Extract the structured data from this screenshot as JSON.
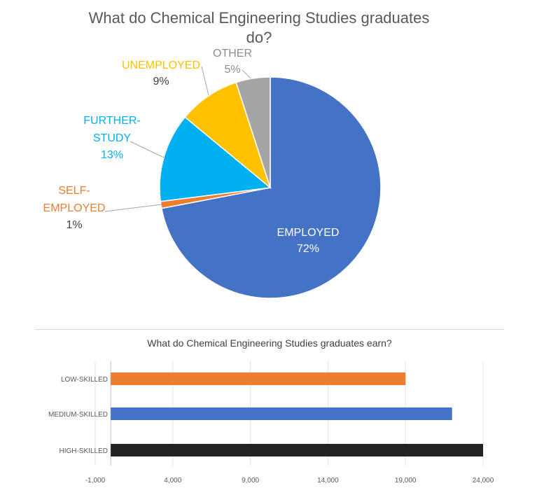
{
  "chart_data": [
    {
      "type": "pie",
      "title": "What do Chemical Engineering Studies graduates do?",
      "slices": [
        {
          "label": "EMPLOYED",
          "value": 72,
          "display": "72%",
          "color": "#4472C4"
        },
        {
          "label": "SELF-EMPLOYED",
          "value": 1,
          "display": "1%",
          "color": "#ED7D31"
        },
        {
          "label": "FURTHER-STUDY",
          "value": 13,
          "display": "13%",
          "color": "#00B0F0"
        },
        {
          "label": "UNEMPLOYED",
          "value": 9,
          "display": "9%",
          "color": "#FFC000"
        },
        {
          "label": "OTHER",
          "value": 5,
          "display": "5%",
          "color": "#A5A5A5"
        }
      ],
      "start": "12 o'clock, clockwise"
    },
    {
      "type": "bar",
      "orientation": "horizontal",
      "title": "What do Chemical Engineering Studies graduates earn?",
      "categories": [
        "LOW-SKILLED",
        "MEDIUM-SKILLED",
        "HIGH-SKILLED"
      ],
      "values": [
        19000,
        22000,
        24000
      ],
      "colors": [
        "#ED7D31",
        "#4472C4",
        "#222222"
      ],
      "xlim": [
        -1000,
        24000
      ],
      "xticks": [
        "-1,000",
        "4,000",
        "9,000",
        "14,000",
        "19,000",
        "24,000"
      ],
      "xtick_values": [
        -1000,
        4000,
        9000,
        14000,
        19000,
        24000
      ],
      "grid": true
    }
  ]
}
